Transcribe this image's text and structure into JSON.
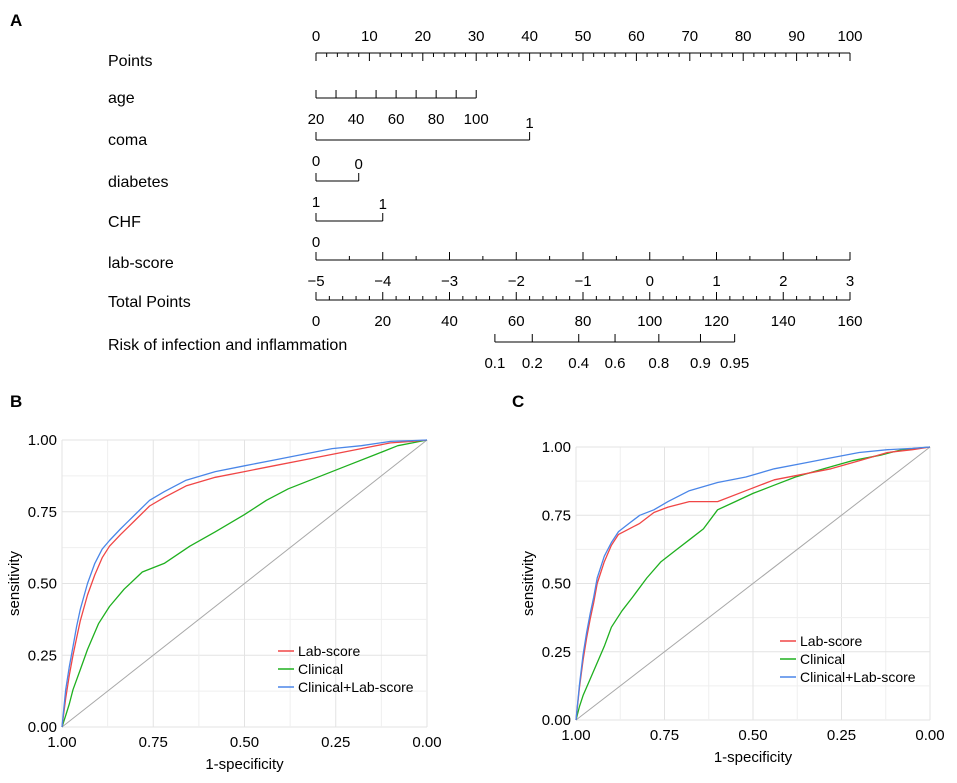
{
  "chart_data": [
    {
      "type": "nomogram",
      "panel_label": "A",
      "rows": [
        {
          "id": "points",
          "label": "Points",
          "labels": [
            "0",
            "10",
            "20",
            "30",
            "40",
            "50",
            "60",
            "70",
            "80",
            "90",
            "100"
          ],
          "label_points": [
            0,
            10,
            20,
            30,
            40,
            50,
            60,
            70,
            80,
            90,
            100
          ],
          "minor_step": 2,
          "labels_above": true
        },
        {
          "id": "age",
          "label": "age",
          "labels": [
            "20",
            "40",
            "60",
            "80",
            "100"
          ],
          "label_points": [
            0,
            7.5,
            15,
            22.5,
            30
          ],
          "tick_points": [
            0,
            3.75,
            7.5,
            11.25,
            15,
            18.75,
            22.5,
            26.25,
            30
          ],
          "labels_above": false
        },
        {
          "id": "coma",
          "label": "coma",
          "labels": [
            "1",
            "0"
          ],
          "label_points": [
            40,
            0
          ],
          "tick_points": [
            0,
            40
          ],
          "label_pos": [
            "above",
            "below"
          ]
        },
        {
          "id": "diabetes",
          "label": "diabetes",
          "labels": [
            "0",
            "1"
          ],
          "label_points": [
            8,
            0
          ],
          "tick_points": [
            0,
            8
          ],
          "label_pos": [
            "above",
            "below"
          ]
        },
        {
          "id": "chf",
          "label": "CHF",
          "labels": [
            "1",
            "0"
          ],
          "label_points": [
            12.5,
            0
          ],
          "tick_points": [
            0,
            12.5
          ],
          "label_pos": [
            "above",
            "below"
          ]
        },
        {
          "id": "labscore",
          "label": "lab-score",
          "labels": [
            "−5",
            "−4",
            "−3",
            "−2",
            "−1",
            "0",
            "1",
            "2",
            "3"
          ],
          "label_points": [
            0,
            12.5,
            25,
            37.5,
            50,
            62.5,
            75,
            87.5,
            100
          ],
          "minor_step": 6.25,
          "labels_above": false
        },
        {
          "id": "total",
          "label": "Total Points",
          "labels": [
            "0",
            "20",
            "40",
            "60",
            "80",
            "100",
            "120",
            "140",
            "160"
          ],
          "label_points": [
            0,
            12.5,
            25,
            37.5,
            50,
            62.5,
            75,
            87.5,
            100
          ],
          "minor_step": 2.5,
          "labels_above": false
        },
        {
          "id": "risk",
          "label": "Risk of infection and inflammation",
          "labels": [
            "0.1",
            "0.2",
            "0.4",
            "0.6",
            "0.8",
            "0.9",
            "0.95"
          ],
          "label_points": [
            33.5,
            40.5,
            49.2,
            56,
            64.2,
            72,
            78.4
          ],
          "labels_above": false
        }
      ]
    },
    {
      "type": "line",
      "panel_label": "B",
      "xlabel": "1-specificity",
      "ylabel": "sensitivity",
      "xlim": [
        1.0,
        0.0
      ],
      "ylim": [
        0.0,
        1.0
      ],
      "x_ticks": [
        "1.00",
        "0.75",
        "0.50",
        "0.25",
        "0.00"
      ],
      "y_ticks": [
        "0.00",
        "0.25",
        "0.50",
        "0.75",
        "1.00"
      ],
      "legend_position": "bottom-right",
      "reference_line": "diagonal",
      "series": [
        {
          "name": "Lab-score",
          "color": "#f04646",
          "x": [
            1.0,
            0.99,
            0.98,
            0.97,
            0.96,
            0.95,
            0.93,
            0.91,
            0.89,
            0.87,
            0.84,
            0.8,
            0.76,
            0.72,
            0.66,
            0.58,
            0.5,
            0.42,
            0.34,
            0.26,
            0.18,
            0.1,
            0.04,
            0.0
          ],
          "y": [
            0.0,
            0.1,
            0.18,
            0.25,
            0.31,
            0.37,
            0.46,
            0.53,
            0.59,
            0.63,
            0.67,
            0.72,
            0.77,
            0.8,
            0.84,
            0.87,
            0.89,
            0.91,
            0.93,
            0.95,
            0.97,
            0.99,
            0.995,
            1.0
          ]
        },
        {
          "name": "Clinical",
          "color": "#1fb01f",
          "x": [
            1.0,
            0.99,
            0.98,
            0.97,
            0.95,
            0.93,
            0.9,
            0.87,
            0.83,
            0.78,
            0.72,
            0.65,
            0.58,
            0.5,
            0.44,
            0.38,
            0.3,
            0.22,
            0.14,
            0.08,
            0.04,
            0.0
          ],
          "y": [
            0.0,
            0.04,
            0.08,
            0.13,
            0.2,
            0.27,
            0.36,
            0.42,
            0.48,
            0.54,
            0.57,
            0.63,
            0.68,
            0.74,
            0.79,
            0.83,
            0.87,
            0.91,
            0.95,
            0.98,
            0.99,
            1.0
          ]
        },
        {
          "name": "Clinical+Lab-score",
          "color": "#4a86e8",
          "x": [
            1.0,
            0.99,
            0.98,
            0.97,
            0.96,
            0.95,
            0.93,
            0.91,
            0.89,
            0.87,
            0.84,
            0.8,
            0.76,
            0.72,
            0.66,
            0.58,
            0.5,
            0.42,
            0.34,
            0.26,
            0.18,
            0.1,
            0.04,
            0.0
          ],
          "y": [
            0.0,
            0.13,
            0.21,
            0.28,
            0.35,
            0.41,
            0.5,
            0.57,
            0.62,
            0.65,
            0.69,
            0.74,
            0.79,
            0.82,
            0.86,
            0.89,
            0.91,
            0.93,
            0.95,
            0.97,
            0.98,
            0.995,
            0.998,
            1.0
          ]
        }
      ]
    },
    {
      "type": "line",
      "panel_label": "C",
      "xlabel": "1-specificity",
      "ylabel": "sensitivity",
      "xlim": [
        1.0,
        0.0
      ],
      "ylim": [
        0.0,
        1.0
      ],
      "x_ticks": [
        "1.00",
        "0.75",
        "0.50",
        "0.25",
        "0.00"
      ],
      "y_ticks": [
        "0.00",
        "0.25",
        "0.50",
        "0.75",
        "1.00"
      ],
      "legend_position": "bottom-right",
      "reference_line": "diagonal",
      "series": [
        {
          "name": "Lab-score",
          "color": "#f04646",
          "x": [
            1.0,
            0.99,
            0.98,
            0.97,
            0.96,
            0.95,
            0.94,
            0.92,
            0.9,
            0.88,
            0.85,
            0.82,
            0.78,
            0.74,
            0.68,
            0.6,
            0.52,
            0.44,
            0.36,
            0.28,
            0.2,
            0.12,
            0.05,
            0.0
          ],
          "y": [
            0.0,
            0.12,
            0.22,
            0.3,
            0.37,
            0.43,
            0.5,
            0.58,
            0.64,
            0.68,
            0.7,
            0.72,
            0.76,
            0.78,
            0.8,
            0.8,
            0.84,
            0.88,
            0.9,
            0.92,
            0.95,
            0.98,
            0.99,
            1.0
          ]
        },
        {
          "name": "Clinical",
          "color": "#1fb01f",
          "x": [
            1.0,
            0.99,
            0.98,
            0.96,
            0.94,
            0.92,
            0.9,
            0.87,
            0.84,
            0.8,
            0.76,
            0.72,
            0.68,
            0.64,
            0.6,
            0.55,
            0.5,
            0.44,
            0.38,
            0.3,
            0.22,
            0.14,
            0.08,
            0.0
          ],
          "y": [
            0.0,
            0.05,
            0.09,
            0.15,
            0.21,
            0.27,
            0.34,
            0.4,
            0.45,
            0.52,
            0.58,
            0.62,
            0.66,
            0.7,
            0.77,
            0.8,
            0.83,
            0.86,
            0.89,
            0.92,
            0.95,
            0.97,
            0.99,
            1.0
          ]
        },
        {
          "name": "Clinical+Lab-score",
          "color": "#4a86e8",
          "x": [
            1.0,
            0.99,
            0.98,
            0.97,
            0.96,
            0.95,
            0.94,
            0.92,
            0.9,
            0.88,
            0.85,
            0.82,
            0.78,
            0.74,
            0.68,
            0.6,
            0.52,
            0.44,
            0.36,
            0.28,
            0.2,
            0.12,
            0.05,
            0.0
          ],
          "y": [
            0.0,
            0.13,
            0.24,
            0.32,
            0.39,
            0.45,
            0.52,
            0.6,
            0.65,
            0.69,
            0.72,
            0.75,
            0.77,
            0.8,
            0.84,
            0.87,
            0.89,
            0.92,
            0.94,
            0.96,
            0.98,
            0.99,
            0.995,
            1.0
          ]
        }
      ]
    }
  ]
}
